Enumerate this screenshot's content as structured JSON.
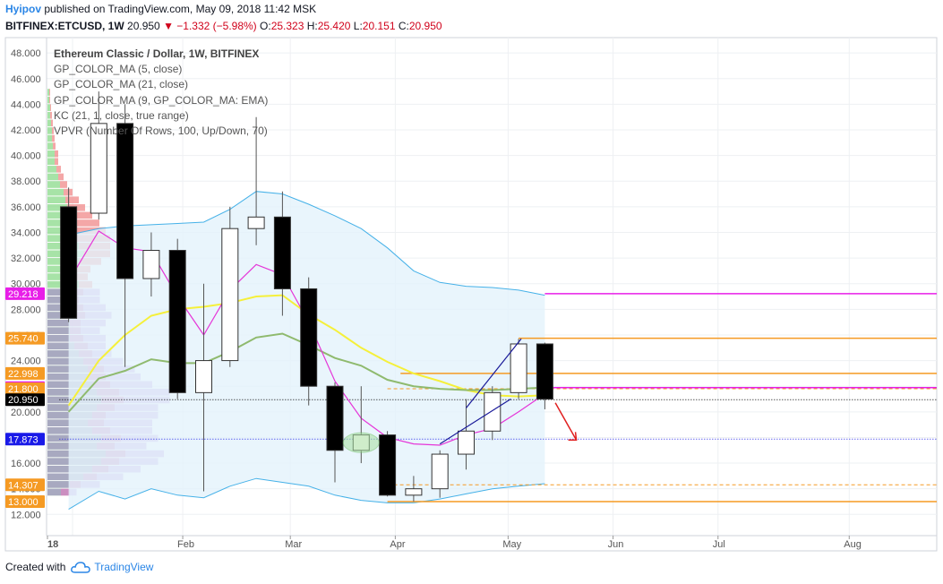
{
  "header": {
    "author": "Hyipov",
    "published_text": "published on TradingView.com, May 09, 2018 11:42 MSK",
    "symbol": "BITFINEX:ETCUSD, 1W",
    "last": "20.950",
    "change": "▼ −1.332 (−5.98%)",
    "open_label": "O:",
    "open": "25.323",
    "high_label": "H:",
    "high": "25.420",
    "low_label": "L:",
    "low": "20.151",
    "close_label": "C:",
    "close": "20.950"
  },
  "legend": {
    "title": "Ethereum Classic / Dollar, 1W, BITFINEX",
    "items": [
      "GP_COLOR_MA (5, close)",
      "GP_COLOR_MA (21, close)",
      "GP_COLOR_MA (9, GP_COLOR_MA: EMA)",
      "KC (21, 1, close, true range)",
      "VPVR (Number Of Rows, 100, Up/Down, 70)"
    ]
  },
  "footer": {
    "created_with": "Created with",
    "brand": "TradingView"
  },
  "colors": {
    "up_fill": "#ffffff",
    "down_fill": "#000000",
    "ma5": "#e535d8",
    "ma21": "#f5f03a",
    "ema9": "#8fba6e",
    "kc": "#45b1e8",
    "kc_fill": "#e4f2fb",
    "level_orange": "#f59a23",
    "level_magenta": "#e81ee8",
    "level_blue": "#1a1ae8",
    "vpvr_up": "#89d989",
    "vpvr_down": "#f08a8a",
    "vpvr_purple": "#a97ad6",
    "trend_blue": "#1a1a99",
    "arrow_red": "#e02020"
  },
  "chart_data": {
    "type": "candlestick",
    "y_axis": {
      "ylim": [
        11.0,
        49.0
      ],
      "ticks": [
        "12.000",
        "14.000",
        "16.000",
        "18.000",
        "20.000",
        "22.000",
        "24.000",
        "26.000",
        "28.000",
        "30.000",
        "32.000",
        "34.000",
        "36.000",
        "38.000",
        "40.000",
        "42.000",
        "44.000",
        "46.000",
        "48.000"
      ]
    },
    "x_axis": {
      "labels": [
        "18",
        "Feb",
        "Mar",
        "Apr",
        "May",
        "Jun",
        "Jul",
        "Aug"
      ],
      "label_weeks": [
        0,
        4.2,
        8.3,
        12.3,
        16.6,
        20.6,
        24.6,
        29.6
      ]
    },
    "candles": [
      {
        "w": -0.15,
        "o": 36.0,
        "h": 37.5,
        "l": 27.0,
        "c": 27.3
      },
      {
        "w": 1,
        "o": 35.5,
        "h": 45.0,
        "l": 35.0,
        "c": 42.5
      },
      {
        "w": 2,
        "o": 42.5,
        "h": 44.0,
        "l": 23.5,
        "c": 30.4
      },
      {
        "w": 3,
        "o": 30.4,
        "h": 34.0,
        "l": 29.0,
        "c": 32.6
      },
      {
        "w": 4,
        "o": 32.6,
        "h": 33.5,
        "l": 21.0,
        "c": 21.5
      },
      {
        "w": 5,
        "o": 21.5,
        "h": 30.0,
        "l": 13.8,
        "c": 24.0
      },
      {
        "w": 6,
        "o": 24.0,
        "h": 36.0,
        "l": 23.5,
        "c": 34.3
      },
      {
        "w": 7,
        "o": 34.3,
        "h": 43.0,
        "l": 33.0,
        "c": 35.2
      },
      {
        "w": 8,
        "o": 35.2,
        "h": 37.2,
        "l": 27.5,
        "c": 29.6
      },
      {
        "w": 9,
        "o": 29.6,
        "h": 30.5,
        "l": 20.5,
        "c": 22.0
      },
      {
        "w": 10,
        "o": 22.0,
        "h": 22.3,
        "l": 14.5,
        "c": 17.0
      },
      {
        "w": 11,
        "o": 17.0,
        "h": 22.0,
        "l": 16.0,
        "c": 18.2
      },
      {
        "w": 12,
        "o": 18.2,
        "h": 18.5,
        "l": 13.4,
        "c": 13.5
      },
      {
        "w": 13,
        "o": 13.5,
        "h": 15.0,
        "l": 13.0,
        "c": 14.0
      },
      {
        "w": 14,
        "o": 14.0,
        "h": 17.0,
        "l": 13.3,
        "c": 16.7
      },
      {
        "w": 15,
        "o": 16.7,
        "h": 21.0,
        "l": 15.5,
        "c": 18.5
      },
      {
        "w": 16,
        "o": 18.5,
        "h": 22.0,
        "l": 17.8,
        "c": 21.5
      },
      {
        "w": 17,
        "o": 21.5,
        "h": 25.7,
        "l": 21.0,
        "c": 25.3
      },
      {
        "w": 18,
        "o": 25.3,
        "h": 25.4,
        "l": 20.2,
        "c": 21.0
      }
    ],
    "ma5": [
      [
        -0.15,
        30.2
      ],
      [
        1,
        34.1
      ],
      [
        2,
        32.8
      ],
      [
        3,
        32.5
      ],
      [
        4,
        29.0
      ],
      [
        5,
        26.0
      ],
      [
        6,
        29.5
      ],
      [
        7,
        31.5
      ],
      [
        8,
        30.7
      ],
      [
        9,
        27.0
      ],
      [
        10,
        22.4
      ],
      [
        11,
        19.5
      ],
      [
        12,
        18.0
      ],
      [
        13,
        17.5
      ],
      [
        14,
        17.4
      ],
      [
        15,
        18.2
      ],
      [
        16,
        18.7
      ],
      [
        17,
        20.0
      ],
      [
        18,
        21.4
      ]
    ],
    "ma21": [
      [
        -0.15,
        20.5
      ],
      [
        1,
        24.0
      ],
      [
        2,
        26.0
      ],
      [
        3,
        27.5
      ],
      [
        4,
        28.0
      ],
      [
        5,
        28.2
      ],
      [
        6,
        28.5
      ],
      [
        7,
        29.0
      ],
      [
        8,
        29.1
      ],
      [
        9,
        27.6
      ],
      [
        10,
        26.4
      ],
      [
        11,
        25.0
      ],
      [
        12,
        23.9
      ],
      [
        13,
        23.0
      ],
      [
        14,
        22.4
      ],
      [
        15,
        21.7
      ],
      [
        16,
        21.3
      ],
      [
        17,
        21.2
      ],
      [
        18,
        21.3
      ]
    ],
    "ema9": [
      [
        -0.15,
        20.0
      ],
      [
        1,
        22.6
      ],
      [
        2,
        23.2
      ],
      [
        3,
        24.1
      ],
      [
        4,
        23.8
      ],
      [
        5,
        23.8
      ],
      [
        6,
        24.7
      ],
      [
        7,
        25.8
      ],
      [
        8,
        26.1
      ],
      [
        9,
        25.2
      ],
      [
        10,
        24.2
      ],
      [
        11,
        23.6
      ],
      [
        12,
        22.5
      ],
      [
        13,
        22.0
      ],
      [
        14,
        21.8
      ],
      [
        15,
        21.7
      ],
      [
        16,
        21.7
      ],
      [
        17,
        21.8
      ],
      [
        18,
        21.9
      ]
    ],
    "kc_upper": [
      [
        -0.15,
        33.8
      ],
      [
        1,
        34.3
      ],
      [
        2,
        34.5
      ],
      [
        3,
        34.6
      ],
      [
        4,
        34.7
      ],
      [
        5,
        34.8
      ],
      [
        6,
        35.8
      ],
      [
        7,
        37.2
      ],
      [
        8,
        37.0
      ],
      [
        9,
        36.2
      ],
      [
        10,
        35.3
      ],
      [
        11,
        34.3
      ],
      [
        12,
        32.8
      ],
      [
        13,
        31.0
      ],
      [
        14,
        30.1
      ],
      [
        15,
        29.8
      ],
      [
        16,
        29.7
      ],
      [
        17,
        29.5
      ],
      [
        18,
        29.1
      ]
    ],
    "kc_lower": [
      [
        -0.15,
        12.4
      ],
      [
        1,
        13.8
      ],
      [
        2,
        13.2
      ],
      [
        3,
        14.0
      ],
      [
        4,
        13.5
      ],
      [
        5,
        13.3
      ],
      [
        6,
        14.2
      ],
      [
        7,
        14.8
      ],
      [
        8,
        14.5
      ],
      [
        9,
        14.2
      ],
      [
        10,
        13.5
      ],
      [
        11,
        13.1
      ],
      [
        12,
        12.9
      ],
      [
        13,
        12.9
      ],
      [
        14,
        13.2
      ],
      [
        15,
        13.6
      ],
      [
        16,
        14.0
      ],
      [
        17,
        14.2
      ],
      [
        18,
        14.4
      ]
    ],
    "levels": [
      {
        "value": 29.218,
        "label": "29.218",
        "color": "#e81ee8",
        "from_week": 18,
        "style": "solid"
      },
      {
        "value": 25.74,
        "label": "25.740",
        "color": "#f59a23",
        "from_week": 17,
        "style": "solid"
      },
      {
        "value": 22.998,
        "label": "22.998",
        "color": "#f59a23",
        "from_week": 12.5,
        "style": "solid"
      },
      {
        "value": 21.89,
        "label": "21.890",
        "color": "#e81ee8",
        "from_week": 18,
        "style": "solid"
      },
      {
        "value": 21.8,
        "label": "21.800",
        "color": "#f59a23",
        "from_week": 12,
        "style": "dashed"
      },
      {
        "value": 20.95,
        "label": "20.950",
        "color": "#000000",
        "from_week": -0.5,
        "style": "dotted"
      },
      {
        "value": 17.873,
        "label": "17.873",
        "color": "#1a1ae8",
        "from_week": -0.5,
        "style": "dotted"
      },
      {
        "value": 14.307,
        "label": "14.307",
        "color": "#f59a23",
        "from_week": 12,
        "style": "dashed"
      },
      {
        "value": 13.0,
        "label": "13.000",
        "color": "#f59a23",
        "from_week": 12,
        "style": "solid"
      }
    ],
    "trendlines": [
      {
        "from": [
          15,
          20.3
        ],
        "to": [
          17.1,
          25.7
        ],
        "color": "#1a1a99"
      },
      {
        "from": [
          14,
          17.5
        ],
        "to": [
          16.7,
          21.0
        ],
        "color": "#1a1a99"
      }
    ],
    "arrow": {
      "from": [
        18.4,
        20.7
      ],
      "to": [
        19.2,
        17.8
      ],
      "color": "#e02020"
    },
    "vpvr": [
      {
        "p": 13.7,
        "up": 15,
        "down": 10,
        "purple": 10
      },
      {
        "p": 14.3,
        "up": 25,
        "down": 12,
        "purple": 20
      },
      {
        "p": 14.9,
        "up": 40,
        "down": 15,
        "purple": 25
      },
      {
        "p": 15.5,
        "up": 50,
        "down": 18,
        "purple": 30
      },
      {
        "p": 16.1,
        "up": 60,
        "down": 20,
        "purple": 35
      },
      {
        "p": 16.7,
        "up": 65,
        "down": 22,
        "purple": 35
      },
      {
        "p": 17.3,
        "up": 55,
        "down": 20,
        "purple": 30
      },
      {
        "p": 17.9,
        "up": 60,
        "down": 22,
        "purple": 35
      },
      {
        "p": 18.5,
        "up": 50,
        "down": 20,
        "purple": 40
      },
      {
        "p": 19.1,
        "up": 45,
        "down": 18,
        "purple": 45
      },
      {
        "p": 19.7,
        "up": 50,
        "down": 15,
        "purple": 45
      },
      {
        "p": 20.3,
        "up": 55,
        "down": 20,
        "purple": 40
      },
      {
        "p": 20.9,
        "up": 60,
        "down": 25,
        "purple": 45
      },
      {
        "p": 21.5,
        "up": 55,
        "down": 25,
        "purple": 50
      },
      {
        "p": 22.1,
        "up": 50,
        "down": 20,
        "purple": 40
      },
      {
        "p": 22.7,
        "up": 45,
        "down": 20,
        "purple": 35
      },
      {
        "p": 23.3,
        "up": 45,
        "down": 18,
        "purple": 30
      },
      {
        "p": 23.9,
        "up": 40,
        "down": 18,
        "purple": 25
      },
      {
        "p": 24.5,
        "up": 35,
        "down": 15,
        "purple": 20
      },
      {
        "p": 25.1,
        "up": 30,
        "down": 15,
        "purple": 20
      },
      {
        "p": 25.7,
        "up": 25,
        "down": 15,
        "purple": 25
      },
      {
        "p": 26.3,
        "up": 25,
        "down": 12,
        "purple": 20
      },
      {
        "p": 26.9,
        "up": 25,
        "down": 12,
        "purple": 25
      },
      {
        "p": 27.5,
        "up": 30,
        "down": 12,
        "purple": 25
      },
      {
        "p": 28.1,
        "up": 30,
        "down": 10,
        "purple": 20
      },
      {
        "p": 28.7,
        "up": 25,
        "down": 10,
        "purple": 20
      },
      {
        "p": 29.3,
        "up": 30,
        "down": 10,
        "purple": 15
      },
      {
        "p": 29.9,
        "up": 35,
        "down": 15,
        "purple": 0
      },
      {
        "p": 30.5,
        "up": 30,
        "down": 15,
        "purple": 0
      },
      {
        "p": 31.1,
        "up": 30,
        "down": 18,
        "purple": 0
      },
      {
        "p": 31.7,
        "up": 35,
        "down": 25,
        "purple": 0
      },
      {
        "p": 32.3,
        "up": 40,
        "down": 30,
        "purple": 0
      },
      {
        "p": 32.9,
        "up": 35,
        "down": 35,
        "purple": 0
      },
      {
        "p": 33.5,
        "up": 30,
        "down": 40,
        "purple": 0
      },
      {
        "p": 34.1,
        "up": 30,
        "down": 35,
        "purple": 0
      },
      {
        "p": 34.7,
        "up": 28,
        "down": 30,
        "purple": 0
      },
      {
        "p": 35.3,
        "up": 25,
        "down": 25,
        "purple": 0
      },
      {
        "p": 35.9,
        "up": 22,
        "down": 20,
        "purple": 0
      },
      {
        "p": 36.5,
        "up": 20,
        "down": 15,
        "purple": 0
      },
      {
        "p": 37.1,
        "up": 18,
        "down": 10,
        "purple": 0
      },
      {
        "p": 37.7,
        "up": 14,
        "down": 8,
        "purple": 0
      },
      {
        "p": 38.3,
        "up": 12,
        "down": 6,
        "purple": 0
      },
      {
        "p": 38.9,
        "up": 10,
        "down": 5,
        "purple": 0
      },
      {
        "p": 39.5,
        "up": 8,
        "down": 4,
        "purple": 0
      },
      {
        "p": 40.1,
        "up": 8,
        "down": 4,
        "purple": 0
      },
      {
        "p": 40.7,
        "up": 6,
        "down": 3,
        "purple": 0
      },
      {
        "p": 41.3,
        "up": 5,
        "down": 3,
        "purple": 0
      },
      {
        "p": 41.9,
        "up": 5,
        "down": 2,
        "purple": 0
      },
      {
        "p": 42.5,
        "up": 4,
        "down": 2,
        "purple": 0
      },
      {
        "p": 43.1,
        "up": 3,
        "down": 2,
        "purple": 0
      },
      {
        "p": 43.7,
        "up": 3,
        "down": 1,
        "purple": 0
      },
      {
        "p": 44.3,
        "up": 2,
        "down": 1,
        "purple": 0
      },
      {
        "p": 44.9,
        "up": 2,
        "down": 1,
        "purple": 0
      }
    ]
  }
}
